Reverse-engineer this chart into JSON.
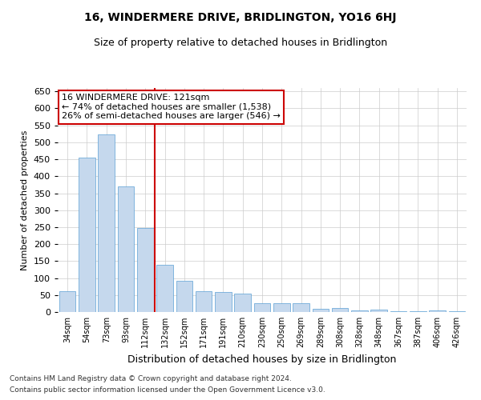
{
  "title": "16, WINDERMERE DRIVE, BRIDLINGTON, YO16 6HJ",
  "subtitle": "Size of property relative to detached houses in Bridlington",
  "xlabel": "Distribution of detached houses by size in Bridlington",
  "ylabel": "Number of detached properties",
  "categories": [
    "34sqm",
    "54sqm",
    "73sqm",
    "93sqm",
    "112sqm",
    "132sqm",
    "152sqm",
    "171sqm",
    "191sqm",
    "210sqm",
    "230sqm",
    "250sqm",
    "269sqm",
    "289sqm",
    "308sqm",
    "328sqm",
    "348sqm",
    "367sqm",
    "387sqm",
    "406sqm",
    "426sqm"
  ],
  "values": [
    62,
    455,
    523,
    370,
    248,
    138,
    93,
    62,
    58,
    55,
    25,
    25,
    25,
    10,
    12,
    5,
    8,
    3,
    2,
    4,
    3
  ],
  "bar_color": "#c5d8ed",
  "bar_edge_color": "#5a9fd4",
  "red_line_x": 4.5,
  "annotation_line1": "16 WINDERMERE DRIVE: 121sqm",
  "annotation_line2": "← 74% of detached houses are smaller (1,538)",
  "annotation_line3": "26% of semi-detached houses are larger (546) →",
  "annotation_box_color": "#ffffff",
  "annotation_box_edge": "#cc0000",
  "vline_color": "#cc0000",
  "ylim": [
    0,
    660
  ],
  "yticks": [
    0,
    50,
    100,
    150,
    200,
    250,
    300,
    350,
    400,
    450,
    500,
    550,
    600,
    650
  ],
  "footer_line1": "Contains HM Land Registry data © Crown copyright and database right 2024.",
  "footer_line2": "Contains public sector information licensed under the Open Government Licence v3.0.",
  "bg_color": "#ffffff",
  "grid_color": "#cccccc",
  "title_fontsize": 10,
  "subtitle_fontsize": 9,
  "ylabel_fontsize": 8,
  "xlabel_fontsize": 9,
  "tick_fontsize": 8,
  "xtick_fontsize": 7,
  "annot_fontsize": 8,
  "footer_fontsize": 6.5
}
